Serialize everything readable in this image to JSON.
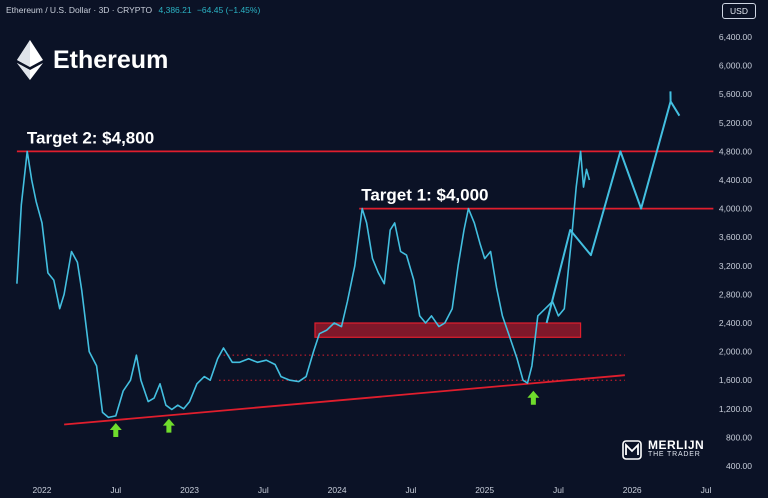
{
  "header": {
    "symbol": "Ethereum / U.S. Dollar · 3D · CRYPTO",
    "price": "4,386.21",
    "change": "−64.45 (−1.45%)"
  },
  "currency": "USD",
  "asset_title": "Ethereum",
  "brand": {
    "line1": "MERLIJN",
    "line2": "THE TRADER"
  },
  "colors": {
    "background": "#0b1226",
    "price_line": "#43bfe0",
    "resistance": "#e01e2d",
    "arrow": "#6fdc2c"
  },
  "chart_data": {
    "type": "line",
    "y_axis": {
      "min": 400,
      "max": 6400,
      "ticks": [
        "400.00",
        "800.00",
        "1,200.00",
        "1,600.00",
        "2,000.00",
        "2,400.00",
        "2,800.00",
        "3,200.00",
        "3,600.00",
        "4,000.00",
        "4,400.00",
        "4,800.00",
        "5,200.00",
        "5,600.00",
        "6,000.00",
        "6,400.00"
      ]
    },
    "x_axis": {
      "ticks": [
        "2022",
        "Jul",
        "2023",
        "Jul",
        "2024",
        "Jul",
        "2025",
        "Jul",
        "2026",
        "Jul"
      ],
      "tick_t": [
        2022.0,
        2022.5,
        2023.0,
        2023.5,
        2024.0,
        2024.5,
        2025.0,
        2025.5,
        2026.0,
        2026.5
      ]
    },
    "series": [
      {
        "kind": "price",
        "points": [
          [
            2021.83,
            2950
          ],
          [
            2021.86,
            4050
          ],
          [
            2021.9,
            4800
          ],
          [
            2021.93,
            4400
          ],
          [
            2021.96,
            4100
          ],
          [
            2022.0,
            3800
          ],
          [
            2022.04,
            3100
          ],
          [
            2022.08,
            3000
          ],
          [
            2022.12,
            2600
          ],
          [
            2022.15,
            2800
          ],
          [
            2022.2,
            3400
          ],
          [
            2022.24,
            3250
          ],
          [
            2022.27,
            2850
          ],
          [
            2022.32,
            2000
          ],
          [
            2022.37,
            1800
          ],
          [
            2022.41,
            1150
          ],
          [
            2022.45,
            1080
          ],
          [
            2022.5,
            1100
          ],
          [
            2022.55,
            1450
          ],
          [
            2022.6,
            1600
          ],
          [
            2022.64,
            1950
          ],
          [
            2022.67,
            1600
          ],
          [
            2022.72,
            1300
          ],
          [
            2022.76,
            1350
          ],
          [
            2022.8,
            1550
          ],
          [
            2022.84,
            1250
          ],
          [
            2022.88,
            1190
          ],
          [
            2022.92,
            1250
          ],
          [
            2022.96,
            1200
          ],
          [
            2023.0,
            1300
          ],
          [
            2023.05,
            1550
          ],
          [
            2023.1,
            1650
          ],
          [
            2023.14,
            1600
          ],
          [
            2023.19,
            1900
          ],
          [
            2023.23,
            2050
          ],
          [
            2023.29,
            1850
          ],
          [
            2023.34,
            1850
          ],
          [
            2023.4,
            1900
          ],
          [
            2023.46,
            1850
          ],
          [
            2023.52,
            1880
          ],
          [
            2023.58,
            1820
          ],
          [
            2023.62,
            1650
          ],
          [
            2023.68,
            1600
          ],
          [
            2023.74,
            1580
          ],
          [
            2023.79,
            1650
          ],
          [
            2023.84,
            2000
          ],
          [
            2023.88,
            2250
          ],
          [
            2023.93,
            2300
          ],
          [
            2023.98,
            2400
          ],
          [
            2024.03,
            2350
          ],
          [
            2024.07,
            2700
          ],
          [
            2024.12,
            3200
          ],
          [
            2024.17,
            4000
          ],
          [
            2024.2,
            3800
          ],
          [
            2024.24,
            3300
          ],
          [
            2024.28,
            3100
          ],
          [
            2024.32,
            2950
          ],
          [
            2024.36,
            3700
          ],
          [
            2024.39,
            3800
          ],
          [
            2024.43,
            3400
          ],
          [
            2024.47,
            3350
          ],
          [
            2024.52,
            3000
          ],
          [
            2024.56,
            2500
          ],
          [
            2024.6,
            2400
          ],
          [
            2024.64,
            2500
          ],
          [
            2024.69,
            2350
          ],
          [
            2024.73,
            2400
          ],
          [
            2024.78,
            2600
          ],
          [
            2024.82,
            3200
          ],
          [
            2024.86,
            3700
          ],
          [
            2024.89,
            4000
          ],
          [
            2024.93,
            3800
          ],
          [
            2024.97,
            3500
          ],
          [
            2025.0,
            3300
          ],
          [
            2025.04,
            3400
          ],
          [
            2025.08,
            2900
          ],
          [
            2025.12,
            2500
          ],
          [
            2025.17,
            2200
          ],
          [
            2025.22,
            1900
          ],
          [
            2025.26,
            1600
          ],
          [
            2025.29,
            1560
          ],
          [
            2025.32,
            1800
          ],
          [
            2025.36,
            2500
          ],
          [
            2025.41,
            2600
          ],
          [
            2025.46,
            2700
          ],
          [
            2025.5,
            2500
          ],
          [
            2025.54,
            2600
          ],
          [
            2025.56,
            3000
          ],
          [
            2025.59,
            3600
          ],
          [
            2025.62,
            4300
          ],
          [
            2025.65,
            4800
          ],
          [
            2025.67,
            4300
          ],
          [
            2025.69,
            4550
          ],
          [
            2025.71,
            4400
          ]
        ]
      },
      {
        "kind": "projection",
        "points": [
          [
            2025.42,
            2400
          ],
          [
            2025.58,
            3700
          ],
          [
            2025.72,
            3350
          ],
          [
            2025.92,
            4800
          ],
          [
            2026.06,
            4000
          ],
          [
            2026.26,
            5500
          ],
          [
            2026.32,
            5300
          ]
        ]
      }
    ],
    "annotations": [
      {
        "kind": "horizontal_line",
        "y": 4800,
        "from": 2021.83,
        "to": 2026.55,
        "label": "Target 2: $4,800"
      },
      {
        "kind": "horizontal_line",
        "y": 4000,
        "from": 2024.15,
        "to": 2026.55,
        "label": "Target 1: $4,000"
      },
      {
        "kind": "zone",
        "y_low": 2200,
        "y_high": 2400,
        "from": 2023.85,
        "to": 2025.65
      },
      {
        "kind": "dotted_line",
        "y": 1950,
        "from": 2023.2,
        "to": 2025.95
      },
      {
        "kind": "dotted_line",
        "y": 1600,
        "from": 2023.2,
        "to": 2025.95
      },
      {
        "kind": "trend_line",
        "from": [
          2022.15,
          980
        ],
        "to": [
          2025.95,
          1670
        ]
      },
      {
        "kind": "arrow_up",
        "x": 2022.5,
        "y": 890
      },
      {
        "kind": "arrow_up",
        "x": 2022.86,
        "y": 950
      },
      {
        "kind": "arrow_up",
        "x": 2025.33,
        "y": 1340
      }
    ]
  }
}
